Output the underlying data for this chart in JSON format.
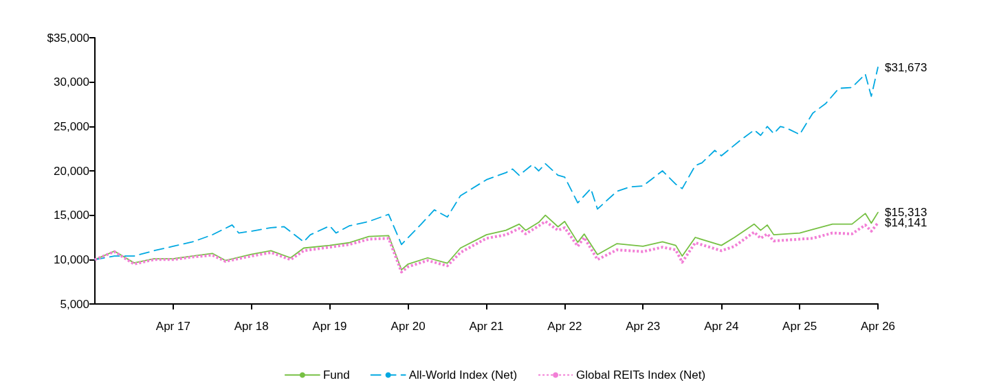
{
  "chart_data": {
    "type": "line",
    "xlim": [
      "2016-04",
      "2026-04"
    ],
    "xticks": [
      {
        "value": "2017-04",
        "label": "Apr 17"
      },
      {
        "value": "2018-04",
        "label": "Apr 18"
      },
      {
        "value": "2019-04",
        "label": "Apr 19"
      },
      {
        "value": "2020-04",
        "label": "Apr 20"
      },
      {
        "value": "2021-04",
        "label": "Apr 21"
      },
      {
        "value": "2022-04",
        "label": "Apr 22"
      },
      {
        "value": "2023-04",
        "label": "Apr 23"
      },
      {
        "value": "2024-04",
        "label": "Apr 24"
      },
      {
        "value": "2025-04",
        "label": "Apr 25"
      },
      {
        "value": "2026-04",
        "label": "Apr 26"
      }
    ],
    "ylim": [
      5000,
      35000
    ],
    "yticks": [
      {
        "value": 5000,
        "label": "5,000"
      },
      {
        "value": 10000,
        "label": "10,000"
      },
      {
        "value": 15000,
        "label": "15,000"
      },
      {
        "value": 20000,
        "label": "20,000"
      },
      {
        "value": 25000,
        "label": "25,000"
      },
      {
        "value": 30000,
        "label": "30,000"
      },
      {
        "value": 35000,
        "label": "$35,000"
      }
    ],
    "grid": false,
    "legend": "bottom",
    "marker": "none",
    "series": [
      {
        "name": "Fund",
        "color": "#76c043",
        "line_style": "solid",
        "x": [
          "2016-04",
          "2016-07",
          "2016-10",
          "2017-01",
          "2017-04",
          "2017-07",
          "2017-10",
          "2017-12",
          "2018-04",
          "2018-07",
          "2018-10",
          "2018-12",
          "2019-04",
          "2019-07",
          "2019-10",
          "2020-01",
          "2020-03",
          "2020-04",
          "2020-07",
          "2020-10",
          "2020-12",
          "2021-04",
          "2021-07",
          "2021-09",
          "2021-10",
          "2021-12",
          "2022-01",
          "2022-03",
          "2022-04",
          "2022-06",
          "2022-07",
          "2022-09",
          "2022-12",
          "2023-04",
          "2023-07",
          "2023-09",
          "2023-10",
          "2023-12",
          "2024-04",
          "2024-06",
          "2024-09",
          "2024-10",
          "2024-11",
          "2024-12",
          "2025-04",
          "2025-06",
          "2025-09",
          "2025-12",
          "2026-02",
          "2026-03",
          "2026-04"
        ],
        "values": [
          10000,
          10950,
          9630,
          10100,
          10100,
          10400,
          10700,
          9900,
          10600,
          11000,
          10200,
          11300,
          11600,
          11900,
          12600,
          12700,
          8860,
          9500,
          10200,
          9600,
          11300,
          12800,
          13300,
          14000,
          13300,
          14200,
          15000,
          13700,
          14300,
          11950,
          12880,
          10560,
          11800,
          11500,
          12000,
          11600,
          10400,
          12500,
          11600,
          12500,
          14000,
          13300,
          13900,
          12800,
          13000,
          13400,
          14000,
          14000,
          15200,
          14100,
          15313
        ],
        "value_labels": [
          null,
          null,
          null,
          null,
          null,
          null,
          null,
          null,
          null,
          null,
          null,
          null,
          null,
          null,
          null,
          null,
          null,
          null,
          null,
          null,
          null,
          null,
          null,
          null,
          null,
          null,
          null,
          null,
          null,
          null,
          null,
          null,
          null,
          null,
          null,
          null,
          null,
          null,
          null,
          null,
          null,
          null,
          null,
          null,
          null,
          null,
          null,
          null,
          null,
          null,
          "$15,313"
        ]
      },
      {
        "name": "All-World Index (Net)",
        "color": "#00a8e1",
        "line_style": "dashed",
        "x": [
          "2016-04",
          "2016-07",
          "2016-10",
          "2017-01",
          "2017-04",
          "2017-07",
          "2017-10",
          "2018-01",
          "2018-02",
          "2018-04",
          "2018-07",
          "2018-09",
          "2018-12",
          "2019-01",
          "2019-04",
          "2019-05",
          "2019-07",
          "2019-10",
          "2020-01",
          "2020-03",
          "2020-06",
          "2020-08",
          "2020-10",
          "2020-12",
          "2021-04",
          "2021-07",
          "2021-08",
          "2021-09",
          "2021-11",
          "2021-12",
          "2022-01",
          "2022-03",
          "2022-04",
          "2022-06",
          "2022-08",
          "2022-09",
          "2022-12",
          "2023-02",
          "2023-04",
          "2023-07",
          "2023-09",
          "2023-10",
          "2023-12",
          "2024-01",
          "2024-03",
          "2024-04",
          "2024-07",
          "2024-09",
          "2024-10",
          "2024-11",
          "2024-12",
          "2025-01",
          "2025-02",
          "2025-04",
          "2025-06",
          "2025-08",
          "2025-10",
          "2025-12",
          "2026-02",
          "2026-03",
          "2026-04"
        ],
        "values": [
          10000,
          10400,
          10400,
          11000,
          11500,
          12000,
          12800,
          13900,
          13000,
          13200,
          13600,
          13700,
          12000,
          12800,
          13800,
          13000,
          13800,
          14300,
          15100,
          11700,
          14000,
          15600,
          14800,
          17200,
          19000,
          19800,
          20200,
          19500,
          20700,
          20000,
          20800,
          19500,
          19300,
          16400,
          18000,
          15700,
          17700,
          18200,
          18300,
          20000,
          18500,
          18000,
          20600,
          20900,
          22300,
          21700,
          23500,
          24600,
          24000,
          25000,
          24200,
          25000,
          24800,
          24100,
          26500,
          27600,
          29300,
          29400,
          30900,
          28400,
          31673
        ],
        "value_labels": [
          null,
          null,
          null,
          null,
          null,
          null,
          null,
          null,
          null,
          null,
          null,
          null,
          null,
          null,
          null,
          null,
          null,
          null,
          null,
          null,
          null,
          null,
          null,
          null,
          null,
          null,
          null,
          null,
          null,
          null,
          null,
          null,
          null,
          null,
          null,
          null,
          null,
          null,
          null,
          null,
          null,
          null,
          null,
          null,
          null,
          null,
          null,
          null,
          null,
          null,
          null,
          null,
          null,
          null,
          null,
          null,
          null,
          null,
          null,
          null,
          "$31,673"
        ]
      },
      {
        "name": "Global REITs Index (Net)",
        "color": "#f27fd6",
        "line_style": "dotted",
        "x": [
          "2016-04",
          "2016-07",
          "2016-10",
          "2017-01",
          "2017-04",
          "2017-07",
          "2017-10",
          "2017-12",
          "2018-04",
          "2018-07",
          "2018-10",
          "2018-12",
          "2019-04",
          "2019-07",
          "2019-10",
          "2020-01",
          "2020-03",
          "2020-04",
          "2020-07",
          "2020-10",
          "2020-12",
          "2021-04",
          "2021-07",
          "2021-09",
          "2021-10",
          "2021-12",
          "2022-01",
          "2022-03",
          "2022-04",
          "2022-06",
          "2022-07",
          "2022-09",
          "2022-12",
          "2023-04",
          "2023-07",
          "2023-09",
          "2023-10",
          "2023-12",
          "2024-04",
          "2024-06",
          "2024-09",
          "2024-10",
          "2024-11",
          "2024-12",
          "2025-04",
          "2025-06",
          "2025-09",
          "2025-12",
          "2026-02",
          "2026-03",
          "2026-04"
        ],
        "values": [
          10000,
          10900,
          9500,
          10000,
          10000,
          10300,
          10500,
          9800,
          10400,
          10800,
          10000,
          11000,
          11400,
          11700,
          12300,
          12400,
          8600,
          9200,
          9900,
          9300,
          10800,
          12400,
          12800,
          13500,
          12900,
          13800,
          14300,
          13300,
          13600,
          11500,
          12500,
          10000,
          11100,
          10900,
          11400,
          11100,
          9700,
          11900,
          11000,
          11500,
          13100,
          12400,
          12900,
          12100,
          12300,
          12400,
          13000,
          12900,
          13900,
          13200,
          14141
        ],
        "value_labels": [
          null,
          null,
          null,
          null,
          null,
          null,
          null,
          null,
          null,
          null,
          null,
          null,
          null,
          null,
          null,
          null,
          null,
          null,
          null,
          null,
          null,
          null,
          null,
          null,
          null,
          null,
          null,
          null,
          null,
          null,
          null,
          null,
          null,
          null,
          null,
          null,
          null,
          null,
          null,
          null,
          null,
          null,
          null,
          null,
          null,
          null,
          null,
          null,
          null,
          null,
          "$14,141"
        ]
      }
    ]
  }
}
